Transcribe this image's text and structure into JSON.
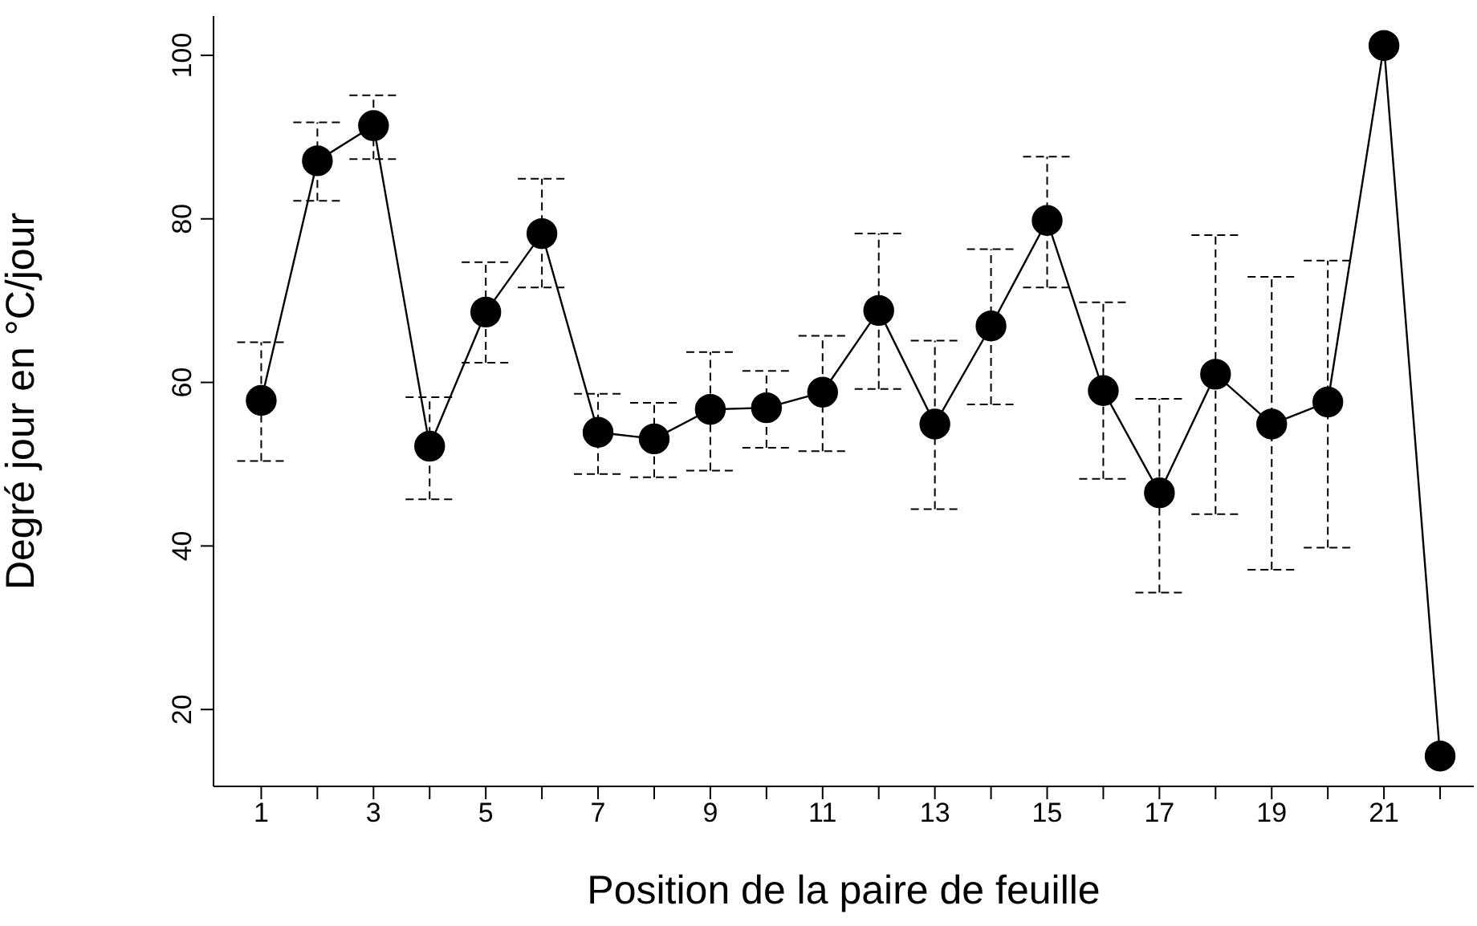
{
  "chart_data": {
    "type": "line",
    "xlabel": "Position de la paire de feuille",
    "ylabel": "Degré jour en °C/jour",
    "x": [
      1,
      2,
      3,
      4,
      5,
      6,
      7,
      8,
      9,
      10,
      11,
      12,
      13,
      14,
      15,
      16,
      17,
      18,
      19,
      20,
      21,
      22
    ],
    "values": [
      57.8,
      87.1,
      91.4,
      52.2,
      68.6,
      78.2,
      53.9,
      53.1,
      56.7,
      56.9,
      58.8,
      68.8,
      54.9,
      66.9,
      79.8,
      59.0,
      46.5,
      61.0,
      54.9,
      57.6,
      101.2,
      14.3
    ],
    "errors": [
      [
        50.4,
        64.9
      ],
      [
        82.2,
        91.8
      ],
      [
        87.3,
        95.1
      ],
      [
        45.7,
        58.2
      ],
      [
        62.4,
        74.7
      ],
      [
        71.6,
        84.9
      ],
      [
        48.8,
        58.6
      ],
      [
        48.4,
        57.5
      ],
      [
        49.2,
        63.7
      ],
      [
        52.0,
        61.4
      ],
      [
        51.6,
        65.7
      ],
      [
        59.2,
        78.2
      ],
      [
        44.5,
        65.1
      ],
      [
        57.3,
        76.3
      ],
      [
        71.6,
        87.6
      ],
      [
        48.2,
        69.8
      ],
      [
        34.3,
        58.0
      ],
      [
        43.9,
        78.0
      ],
      [
        37.1,
        72.9
      ],
      [
        39.8,
        74.9
      ],
      null,
      null
    ],
    "color": "#000000",
    "marker": "circle",
    "line_style": "solid",
    "grid": false,
    "legend": false,
    "xlim": [
      0.15,
      22.6
    ],
    "ylim": [
      10.6,
      104.8
    ],
    "xticks": [
      1,
      {
        "value": 2,
        "label": null
      },
      3,
      {
        "value": 4,
        "label": null
      },
      5,
      {
        "value": 6,
        "label": null
      },
      7,
      {
        "value": 8,
        "label": null
      },
      9,
      {
        "value": 10,
        "label": null
      },
      11,
      {
        "value": 12,
        "label": null
      },
      13,
      {
        "value": 14,
        "label": null
      },
      15,
      {
        "value": 16,
        "label": null
      },
      17,
      {
        "value": 18,
        "label": null
      },
      19,
      {
        "value": 20,
        "label": null
      },
      21,
      {
        "value": 22,
        "label": null
      }
    ],
    "yticks": [
      20,
      40,
      60,
      80,
      100
    ]
  }
}
